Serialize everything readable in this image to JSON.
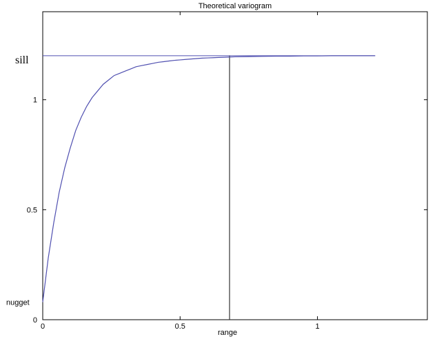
{
  "chart_data": {
    "type": "line",
    "title": "Theoretical variogram",
    "xlabel": "",
    "ylabel": "",
    "xlim": [
      0,
      1.4
    ],
    "ylim": [
      0,
      1.4
    ],
    "x_ticks": [
      {
        "value": 0,
        "label": "0"
      },
      {
        "value": 0.5,
        "label": "0.5"
      },
      {
        "value": 1,
        "label": "1"
      }
    ],
    "y_ticks": [
      {
        "value": 0,
        "label": "0"
      },
      {
        "value": 0.5,
        "label": "0.5"
      },
      {
        "value": 1,
        "label": "1"
      }
    ],
    "grid": false,
    "annotations": {
      "sill_label": "sill",
      "nugget_label": "nugget",
      "range_label": "range",
      "sill_value": 1.2,
      "nugget_value": 0.08,
      "range_value": 0.68,
      "sill_line_x_end": 1.21
    },
    "series": [
      {
        "x": [
          0,
          0.02,
          0.04,
          0.06,
          0.08,
          0.1,
          0.12,
          0.14,
          0.16,
          0.18,
          0.2,
          0.22,
          0.24,
          0.26,
          0.28,
          0.3,
          0.32,
          0.34,
          0.36,
          0.38,
          0.4,
          0.42,
          0.44,
          0.46,
          0.48,
          0.5,
          0.52,
          0.54,
          0.56,
          0.58,
          0.6,
          0.62,
          0.64,
          0.66,
          0.68,
          0.7,
          0.75,
          0.8,
          0.85,
          0.9,
          0.95,
          1.0,
          1.05,
          1.1,
          1.15,
          1.21
        ],
        "y": [
          0.08,
          0.28,
          0.44,
          0.58,
          0.69,
          0.78,
          0.86,
          0.92,
          0.97,
          1.01,
          1.04,
          1.07,
          1.09,
          1.11,
          1.12,
          1.13,
          1.14,
          1.15,
          1.155,
          1.16,
          1.165,
          1.17,
          1.173,
          1.176,
          1.179,
          1.181,
          1.183,
          1.185,
          1.187,
          1.189,
          1.19,
          1.191,
          1.192,
          1.193,
          1.194,
          1.195,
          1.196,
          1.197,
          1.198,
          1.198,
          1.199,
          1.199,
          1.2,
          1.2,
          1.2,
          1.2
        ]
      }
    ],
    "colors": {
      "curve": "#4f4fb0",
      "sill_line": "#4f4fb0",
      "range_line": "#333333",
      "axes": "#000000"
    }
  }
}
